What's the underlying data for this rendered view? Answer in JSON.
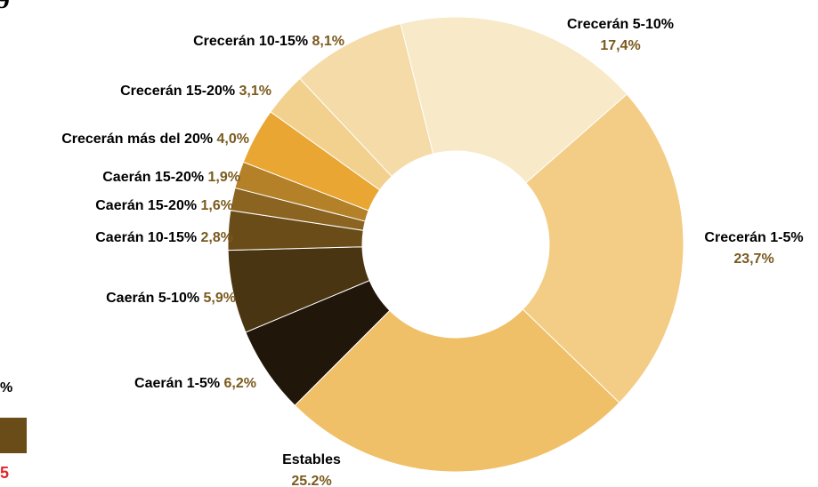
{
  "chart_data": {
    "type": "donut",
    "categories": [
      "Crecerán 5-10%",
      "Crecerán 1-5%",
      "Estables",
      "Caerán 1-5%",
      "Caerán 5-10%",
      "Caerán 10-15%",
      "Caerán 15-20%",
      "Caerán 15-20%",
      "Crecerán más del 20%",
      "Crecerán 15-20%",
      "Crecerán 10-15%"
    ],
    "values": [
      17.4,
      23.7,
      25.2,
      6.2,
      5.9,
      2.8,
      1.6,
      1.9,
      4.0,
      3.1,
      8.1
    ],
    "value_labels": [
      "17,4%",
      "23,7%",
      "25.2%",
      "6,2%",
      "5,9%",
      "2,8%",
      "1,6%",
      "1,9%",
      "4,0%",
      "3,1%",
      "8,1%"
    ],
    "colors": [
      "#f8e9c8",
      "#f3cd85",
      "#f0c068",
      "#20170a",
      "#4a3512",
      "#6a4c18",
      "#8a6420",
      "#b58128",
      "#eaa633",
      "#f2d08d",
      "#f4dba8"
    ]
  },
  "fragments": {
    "heading": "9",
    "legend_label": "%",
    "legend_value": "5"
  }
}
